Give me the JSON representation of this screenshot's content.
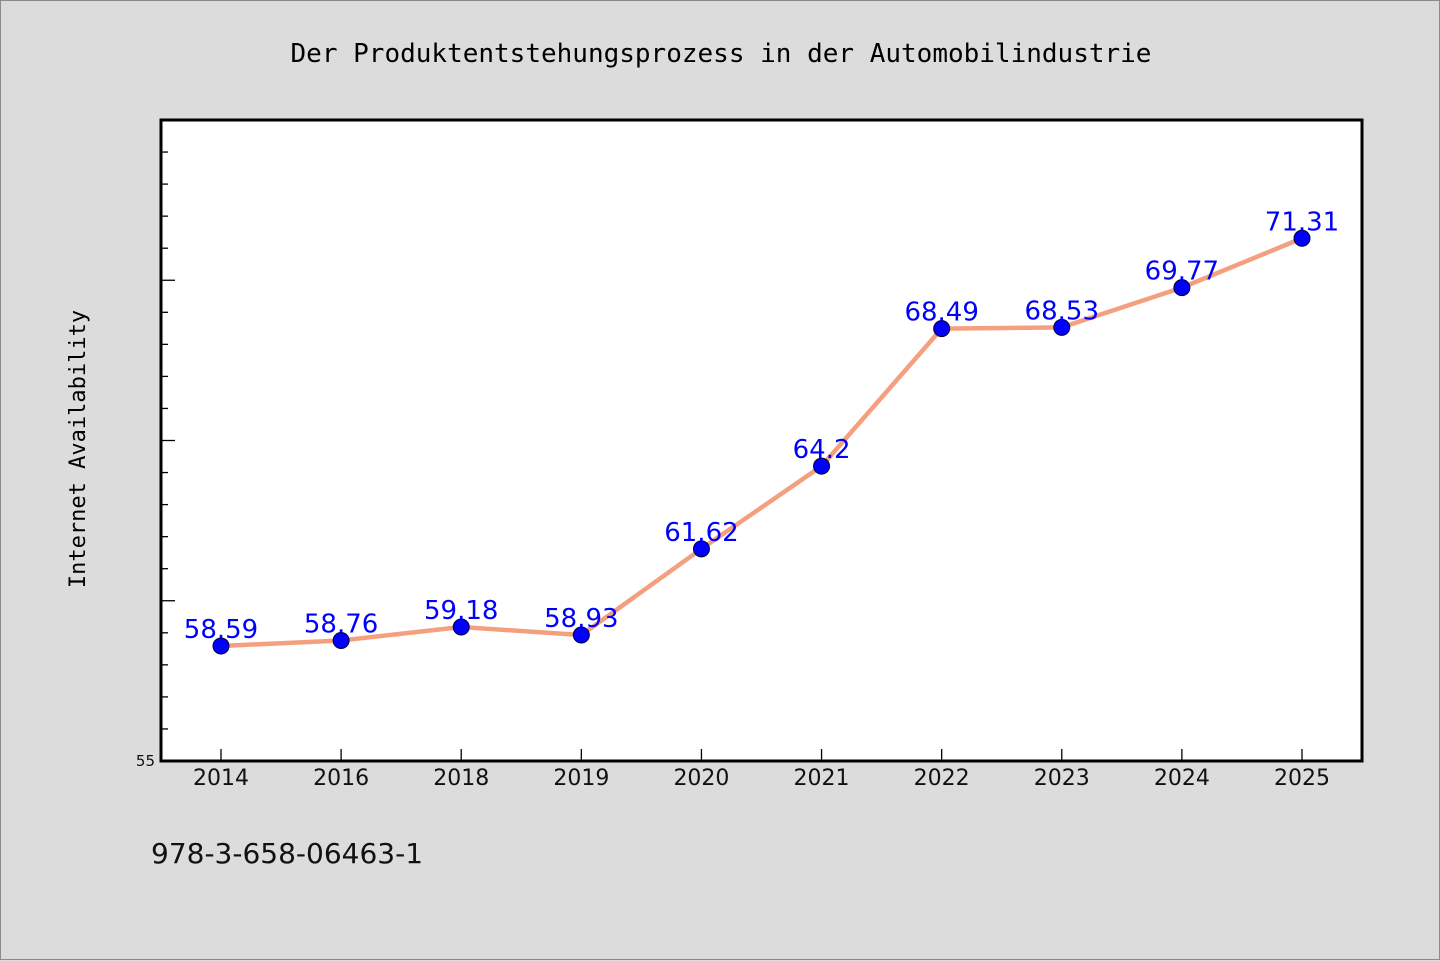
{
  "chart_data": {
    "type": "line",
    "title": "Der Produktentstehungsprozess in der Automobilindustrie",
    "xlabel": "",
    "ylabel": "Internet Availability",
    "categories": [
      "2014",
      "2016",
      "2018",
      "2019",
      "2020",
      "2021",
      "2022",
      "2023",
      "2024",
      "2025"
    ],
    "series": [
      {
        "values": [
          58.59,
          58.76,
          59.18,
          58.93,
          61.62,
          64.2,
          68.49,
          68.53,
          69.77,
          71.31
        ],
        "labels": [
          "58.59",
          "58.76",
          "59.18",
          "58.93",
          "61.62",
          "64.2",
          "68.49",
          "68.53",
          "69.77",
          "71.31"
        ]
      }
    ],
    "ylim": [
      55,
      75
    ],
    "y_tick_labels_shown": [
      "55"
    ],
    "grid": false,
    "colors": {
      "line": "#f4a07e",
      "marker": "#0000ff",
      "label": "#0000ff",
      "plot_bg": "#ffffff",
      "page_bg": "#dcdcdc"
    }
  },
  "footnote": "978-3-658-06463-1"
}
